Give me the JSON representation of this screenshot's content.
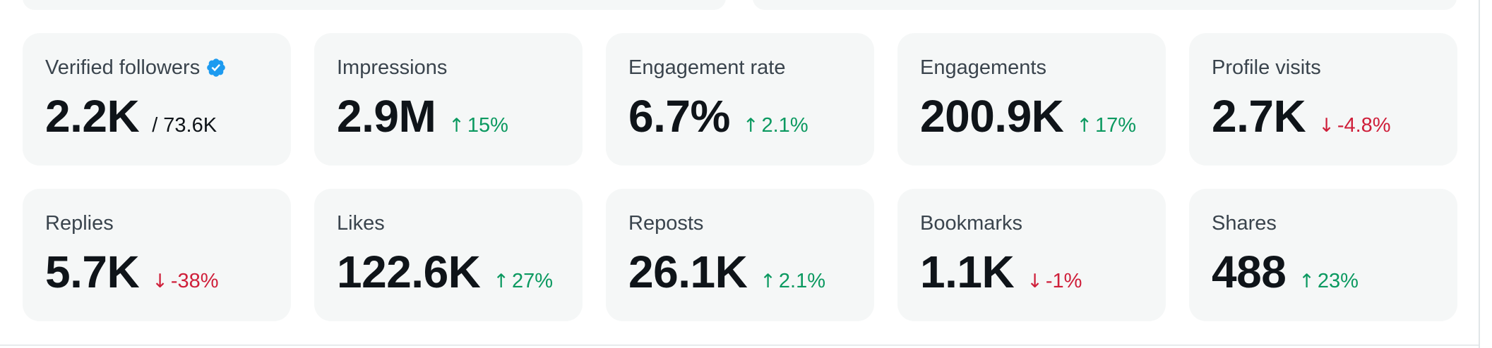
{
  "colors": {
    "card_background": "#f5f7f7",
    "positive": "#0b9960",
    "negative": "#cf1f3a",
    "verified_badge": "#1d9bf0"
  },
  "metrics": [
    {
      "label": "Verified followers",
      "value": "2.2K",
      "sub_value": "/ 73.6K",
      "icon": "verified-badge-icon"
    },
    {
      "label": "Impressions",
      "value": "2.9M",
      "change": "15%",
      "direction": "up"
    },
    {
      "label": "Engagement rate",
      "value": "6.7%",
      "change": "2.1%",
      "direction": "up"
    },
    {
      "label": "Engagements",
      "value": "200.9K",
      "change": "17%",
      "direction": "up"
    },
    {
      "label": "Profile visits",
      "value": "2.7K",
      "change": "-4.8%",
      "direction": "down"
    },
    {
      "label": "Replies",
      "value": "5.7K",
      "change": "-38%",
      "direction": "down"
    },
    {
      "label": "Likes",
      "value": "122.6K",
      "change": "27%",
      "direction": "up"
    },
    {
      "label": "Reposts",
      "value": "26.1K",
      "change": "2.1%",
      "direction": "up"
    },
    {
      "label": "Bookmarks",
      "value": "1.1K",
      "change": "-1%",
      "direction": "down"
    },
    {
      "label": "Shares",
      "value": "488",
      "change": "23%",
      "direction": "up"
    }
  ]
}
